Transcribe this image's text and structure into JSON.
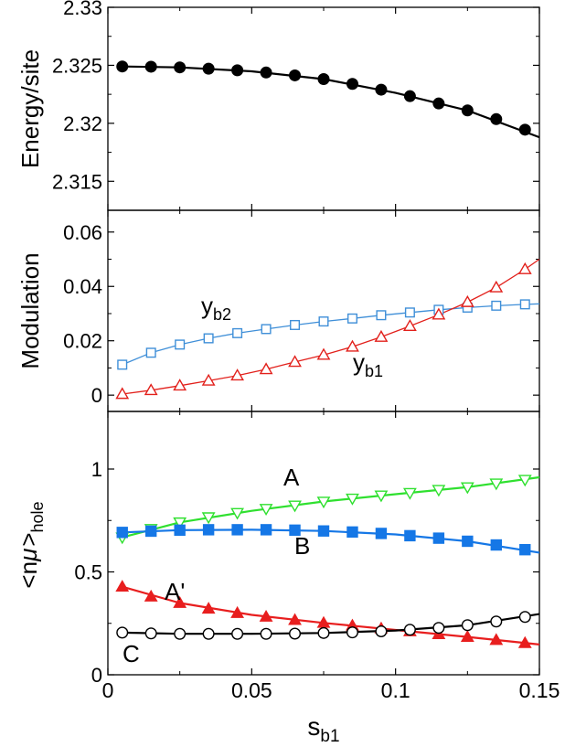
{
  "x_axis": {
    "ticks": [
      0,
      0.05,
      0.1,
      0.15
    ],
    "tick_labels": [
      "0",
      "0.05",
      "0.1",
      "0.15"
    ],
    "label_main": "s",
    "label_sub": "b1"
  },
  "chart_data": [
    {
      "type": "line",
      "panel": "top",
      "ylabel": "Energy/site",
      "xlim": [
        0,
        0.15
      ],
      "ylim": [
        2.3125,
        2.33
      ],
      "yticks": [
        2.315,
        2.32,
        2.325,
        2.33
      ],
      "ytick_labels": [
        "2.315",
        "2.32",
        "2.325",
        "2.33"
      ],
      "grid": false,
      "series": [
        {
          "color": "#000000",
          "marker": "circle-filled",
          "x": [
            0.005,
            0.015,
            0.025,
            0.035,
            0.045,
            0.055,
            0.065,
            0.075,
            0.085,
            0.095,
            0.105,
            0.115,
            0.125,
            0.135,
            0.145
          ],
          "y": [
            2.3249,
            2.32488,
            2.32482,
            2.32471,
            2.32457,
            2.32438,
            2.32413,
            2.32381,
            2.3234,
            2.3229,
            2.32234,
            2.32171,
            2.32111,
            2.32036,
            2.31945
          ],
          "curve_x": [
            0.005,
            0.025,
            0.05,
            0.075,
            0.1,
            0.125,
            0.15
          ],
          "curve_y": [
            2.3249,
            2.32482,
            2.32448,
            2.32381,
            2.32262,
            2.32111,
            2.3188
          ]
        }
      ]
    },
    {
      "type": "line",
      "panel": "middle",
      "ylabel": "Modulation",
      "xlim": [
        0,
        0.15
      ],
      "ylim": [
        -0.006,
        0.068
      ],
      "yticks": [
        0,
        0.02,
        0.04,
        0.06
      ],
      "ytick_labels": [
        "0",
        "0.02",
        "0.04",
        "0.06"
      ],
      "grid": false,
      "series": [
        {
          "label_main": "y",
          "label_sub": "b2",
          "color": "#3f8fd8",
          "marker": "square-open",
          "x": [
            0.005,
            0.015,
            0.025,
            0.035,
            0.045,
            0.055,
            0.065,
            0.075,
            0.085,
            0.095,
            0.105,
            0.115,
            0.125,
            0.135,
            0.145
          ],
          "y": [
            0.0112,
            0.0156,
            0.0186,
            0.0209,
            0.0228,
            0.0243,
            0.0258,
            0.0271,
            0.0282,
            0.0294,
            0.0304,
            0.0314,
            0.0322,
            0.0329,
            0.0334
          ],
          "curve_x": [
            0.005,
            0.015,
            0.025,
            0.035,
            0.045,
            0.055,
            0.065,
            0.075,
            0.085,
            0.095,
            0.105,
            0.115,
            0.125,
            0.135,
            0.145,
            0.15
          ],
          "curve_y": [
            0.0112,
            0.0156,
            0.0186,
            0.0209,
            0.0228,
            0.0243,
            0.0258,
            0.0271,
            0.0282,
            0.0294,
            0.0304,
            0.0314,
            0.0322,
            0.0329,
            0.0334,
            0.0336
          ]
        },
        {
          "label_main": "y",
          "label_sub": "b1",
          "color": "#e2201b",
          "marker": "triangle-up-open",
          "x": [
            0.005,
            0.015,
            0.025,
            0.035,
            0.045,
            0.055,
            0.065,
            0.075,
            0.085,
            0.095,
            0.105,
            0.115,
            0.125,
            0.135,
            0.145
          ],
          "y": [
            0.0004,
            0.0018,
            0.0035,
            0.0053,
            0.0072,
            0.0095,
            0.0122,
            0.0148,
            0.0178,
            0.0214,
            0.0254,
            0.0296,
            0.0342,
            0.0396,
            0.0463
          ],
          "curve_x": [
            0.005,
            0.015,
            0.025,
            0.035,
            0.045,
            0.055,
            0.065,
            0.075,
            0.085,
            0.095,
            0.105,
            0.115,
            0.125,
            0.135,
            0.145,
            0.15
          ],
          "curve_y": [
            0.0004,
            0.0018,
            0.0035,
            0.0053,
            0.0072,
            0.0095,
            0.0122,
            0.0148,
            0.0178,
            0.0214,
            0.0254,
            0.0296,
            0.0342,
            0.0396,
            0.0463,
            0.05
          ]
        }
      ]
    },
    {
      "type": "line",
      "panel": "bottom",
      "ylabel_left": "<n",
      "ylabel_greek": "μ",
      "ylabel_right": ">",
      "ylabel_sub": "hole",
      "xlim": [
        0,
        0.15
      ],
      "ylim": [
        0,
        1.28
      ],
      "yticks": [
        0,
        0.5,
        1
      ],
      "ytick_labels": [
        "0",
        "0.5",
        "1"
      ],
      "grid": false,
      "series": [
        {
          "name": "A",
          "color": "#2fe02f",
          "marker": "triangle-down-open",
          "x": [
            0.005,
            0.015,
            0.025,
            0.035,
            0.045,
            0.055,
            0.065,
            0.075,
            0.085,
            0.095,
            0.105,
            0.115,
            0.125,
            0.135,
            0.145
          ],
          "y": [
            0.668,
            0.709,
            0.741,
            0.766,
            0.787,
            0.807,
            0.823,
            0.842,
            0.857,
            0.872,
            0.884,
            0.899,
            0.912,
            0.93,
            0.948
          ],
          "curve_x": [
            0.005,
            0.025,
            0.05,
            0.075,
            0.1,
            0.125,
            0.15
          ],
          "curve_y": [
            0.668,
            0.741,
            0.797,
            0.842,
            0.878,
            0.912,
            0.96
          ]
        },
        {
          "name": "B",
          "color": "#1577e6",
          "marker": "square-filled",
          "x": [
            0.005,
            0.015,
            0.025,
            0.035,
            0.045,
            0.055,
            0.065,
            0.075,
            0.085,
            0.095,
            0.105,
            0.115,
            0.125,
            0.135,
            0.145
          ],
          "y": [
            0.692,
            0.698,
            0.703,
            0.705,
            0.705,
            0.705,
            0.703,
            0.699,
            0.694,
            0.687,
            0.676,
            0.664,
            0.649,
            0.631,
            0.608
          ],
          "curve_x": [
            0.005,
            0.025,
            0.05,
            0.075,
            0.1,
            0.125,
            0.15
          ],
          "curve_y": [
            0.692,
            0.703,
            0.705,
            0.699,
            0.682,
            0.649,
            0.594
          ]
        },
        {
          "name": "A'",
          "color": "#e81e1e",
          "marker": "triangle-up-filled",
          "x": [
            0.005,
            0.015,
            0.025,
            0.035,
            0.045,
            0.055,
            0.065,
            0.075,
            0.085,
            0.095,
            0.105,
            0.115,
            0.125,
            0.135,
            0.145
          ],
          "y": [
            0.428,
            0.38,
            0.349,
            0.321,
            0.3,
            0.282,
            0.266,
            0.252,
            0.239,
            0.225,
            0.211,
            0.197,
            0.184,
            0.169,
            0.154
          ],
          "curve_x": [
            0.005,
            0.025,
            0.05,
            0.075,
            0.1,
            0.125,
            0.15
          ],
          "curve_y": [
            0.428,
            0.349,
            0.291,
            0.252,
            0.218,
            0.184,
            0.147
          ]
        },
        {
          "name": "C",
          "color": "#000000",
          "marker": "circle-open",
          "x": [
            0.005,
            0.015,
            0.025,
            0.035,
            0.045,
            0.055,
            0.065,
            0.075,
            0.085,
            0.095,
            0.105,
            0.115,
            0.125,
            0.135,
            0.145
          ],
          "y": [
            0.205,
            0.201,
            0.199,
            0.199,
            0.199,
            0.199,
            0.2,
            0.203,
            0.206,
            0.211,
            0.219,
            0.228,
            0.241,
            0.259,
            0.281
          ],
          "curve_x": [
            0.005,
            0.025,
            0.05,
            0.075,
            0.1,
            0.125,
            0.15
          ],
          "curve_y": [
            0.205,
            0.199,
            0.199,
            0.203,
            0.215,
            0.241,
            0.295
          ]
        }
      ]
    }
  ]
}
